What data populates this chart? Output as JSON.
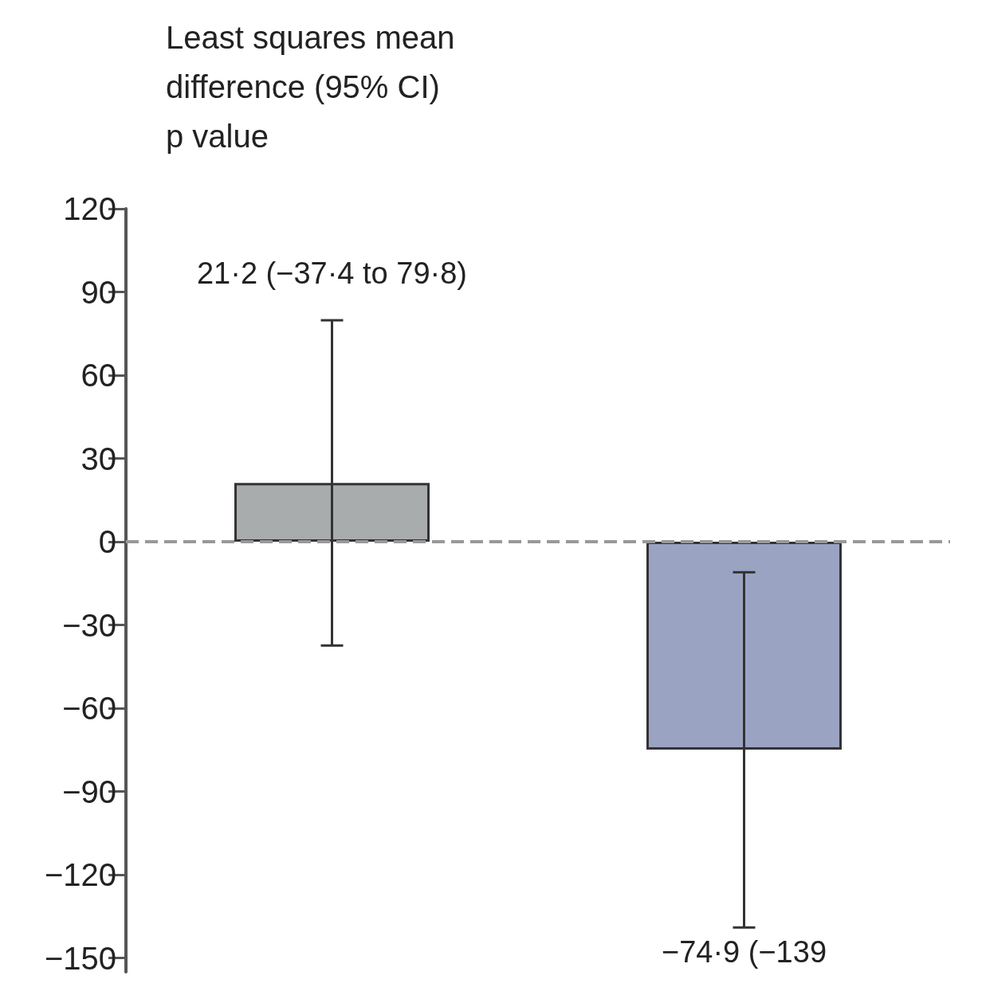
{
  "chart_data": {
    "type": "bar",
    "ylabel": "Least squares mean\ndifference (95% CI)\np value",
    "categories": [
      null,
      null
    ],
    "values": [
      21.2,
      -74.9
    ],
    "colors": [
      "#a9acac",
      "#9ba3c3"
    ],
    "errors": [
      [
        -37.4,
        79.8
      ],
      [
        -139,
        -11
      ]
    ],
    "annotations": [
      "21·2 (−37·4 to 79·8)",
      "−74·9 (−139"
    ],
    "ylim": [
      -155,
      120
    ],
    "yticks": [
      -150,
      -120,
      -90,
      -60,
      -30,
      0,
      30,
      60,
      90,
      120
    ],
    "ref_lines": [
      {
        "axis": "y",
        "value": 0,
        "color": "#999999",
        "line_style": "dashed"
      }
    ],
    "grid": false
  }
}
